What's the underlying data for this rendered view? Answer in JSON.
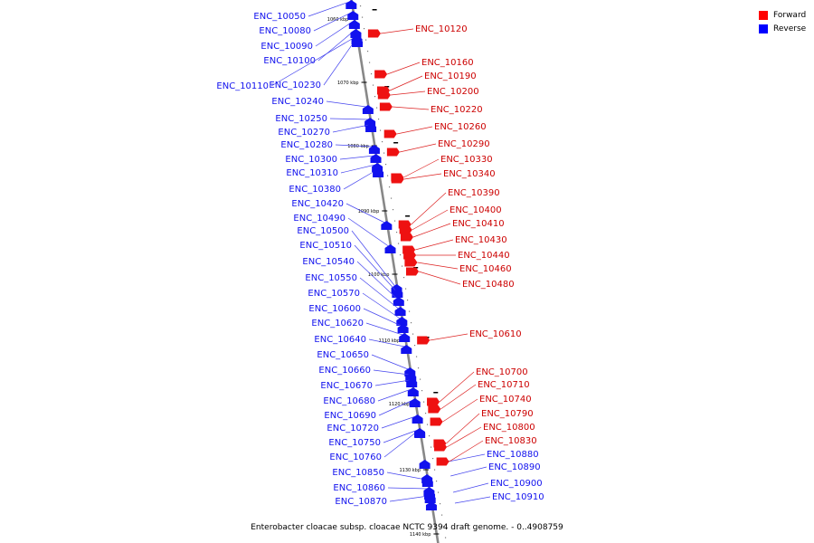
{
  "caption": "Enterobacter cloacae subsp. cloacae NCTC 9394 draft genome. - 0..4908759",
  "legend": [
    {
      "label": "Forward",
      "color": "#ff0000"
    },
    {
      "label": "Reverse",
      "color": "#0000ff"
    }
  ],
  "colors": {
    "forward": "#ee1111",
    "reverse": "#1111ee",
    "backbone": "#888888"
  },
  "tick_labels": [
    "1060 kbp",
    "1070 kbp",
    "1080 kbp",
    "1090 kbp",
    "1100 kbp",
    "1110 kbp",
    "1120 kbp",
    "1130 kbp",
    "1140 kbp"
  ],
  "reverse_genes": [
    "ENC_10050",
    "ENC_10080",
    "ENC_10090",
    "ENC_10100",
    "ENC_10110",
    "ENC_10230",
    "ENC_10240",
    "ENC_10250",
    "ENC_10270",
    "ENC_10280",
    "ENC_10300",
    "ENC_10310",
    "ENC_10380",
    "ENC_10420",
    "ENC_10490",
    "ENC_10500",
    "ENC_10510",
    "ENC_10540",
    "ENC_10550",
    "ENC_10570",
    "ENC_10600",
    "ENC_10620",
    "ENC_10640",
    "ENC_10650",
    "ENC_10660",
    "ENC_10670",
    "ENC_10680",
    "ENC_10690",
    "ENC_10720",
    "ENC_10750",
    "ENC_10760",
    "ENC_10850",
    "ENC_10860",
    "ENC_10870",
    "ENC_10880",
    "ENC_10890",
    "ENC_10900",
    "ENC_10910"
  ],
  "forward_genes": [
    "ENC_10120",
    "ENC_10160",
    "ENC_10190",
    "ENC_10200",
    "ENC_10220",
    "ENC_10260",
    "ENC_10290",
    "ENC_10330",
    "ENC_10340",
    "ENC_10390",
    "ENC_10400",
    "ENC_10410",
    "ENC_10430",
    "ENC_10440",
    "ENC_10460",
    "ENC_10480",
    "ENC_10610",
    "ENC_10700",
    "ENC_10710",
    "ENC_10740",
    "ENC_10790",
    "ENC_10800",
    "ENC_10830"
  ]
}
